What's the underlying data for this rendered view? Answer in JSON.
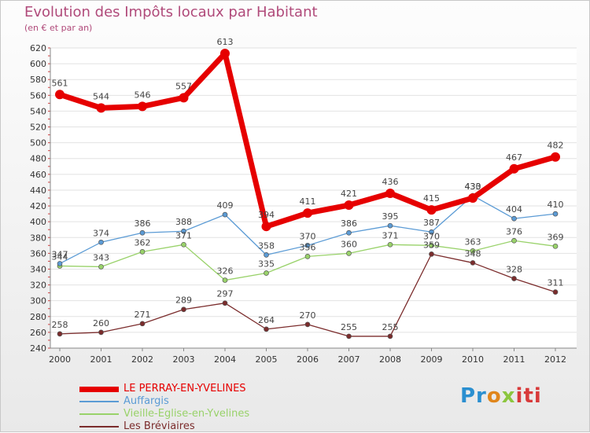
{
  "chart_data": {
    "type": "line",
    "title": "Evolution des Impôts locaux par Habitant",
    "subtitle": "(en € et par an)",
    "x": [
      "2000",
      "2001",
      "2002",
      "2003",
      "2004",
      "2005",
      "2006",
      "2007",
      "2008",
      "2009",
      "2010",
      "2011",
      "2012"
    ],
    "ylim": [
      240,
      620
    ],
    "yticks": [
      240,
      260,
      280,
      300,
      320,
      340,
      360,
      380,
      400,
      420,
      440,
      460,
      480,
      500,
      520,
      540,
      560,
      580,
      600,
      620
    ],
    "grid": "horizontal",
    "legend_position": "bottom-left",
    "series": [
      {
        "name": "LE PERRAY-EN-YVELINES",
        "color": "#e60000",
        "values": [
          561,
          544,
          546,
          557,
          613,
          394,
          411,
          421,
          436,
          415,
          430,
          467,
          482
        ]
      },
      {
        "name": "Auffargis",
        "color": "#5b9bd5",
        "values": [
          347,
          374,
          386,
          388,
          409,
          358,
          370,
          386,
          395,
          387,
          433,
          404,
          410
        ]
      },
      {
        "name": "Vieille-Eglise-en-Yvelines",
        "color": "#99d26a",
        "values": [
          344,
          343,
          362,
          371,
          326,
          335,
          356,
          360,
          371,
          370,
          363,
          376,
          369
        ]
      },
      {
        "name": "Les Bréviaires",
        "color": "#7b2c2c",
        "values": [
          258,
          260,
          271,
          289,
          297,
          264,
          270,
          255,
          255,
          359,
          348,
          328,
          311
        ]
      }
    ]
  },
  "logo": {
    "part1": "Pr",
    "part2": "o",
    "part3": "x",
    "part4": "iti"
  }
}
